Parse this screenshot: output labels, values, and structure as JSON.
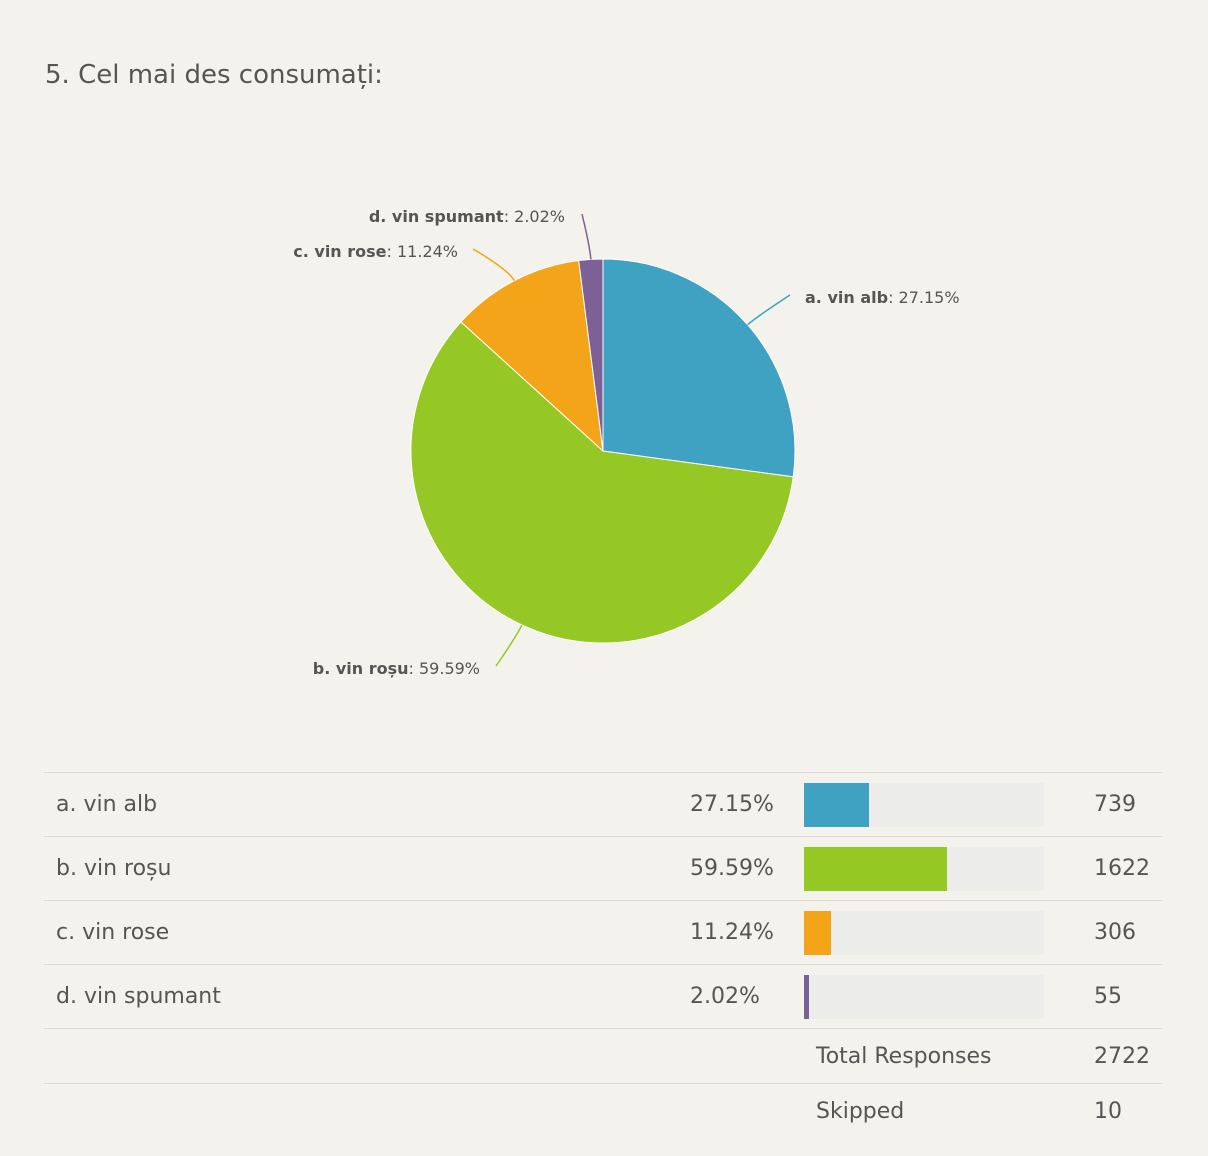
{
  "question": {
    "title": "5. Cel mai des consumați:"
  },
  "chart_data": {
    "type": "pie",
    "slices": [
      {
        "name": "a. vin alb",
        "label_name": "a. vin alb",
        "percent": 27.15,
        "percent_label": "27.15%",
        "count": 739,
        "color": "#3fa2c3"
      },
      {
        "name": "b. vin roșu",
        "label_name": "b. vin roșu",
        "percent": 59.59,
        "percent_label": "59.59%",
        "count": 1622,
        "color": "#95c824"
      },
      {
        "name": "c. vin rose",
        "label_name": "c. vin rose",
        "percent": 11.24,
        "percent_label": "11.24%",
        "count": 306,
        "color": "#f4a419"
      },
      {
        "name": "d. vin spumant",
        "label_name": "d. vin spumant",
        "percent": 2.02,
        "percent_label": "2.02%",
        "count": 55,
        "color": "#7d6096"
      }
    ]
  },
  "table": {
    "rows": [
      {
        "label": "a. vin alb",
        "percent": "27.15%",
        "count": "739",
        "color": "#3fa2c3"
      },
      {
        "label": "b. vin roșu",
        "percent": "59.59%",
        "count": "1622",
        "color": "#95c824"
      },
      {
        "label": "c. vin rose",
        "percent": "11.24%",
        "count": "306",
        "color": "#f4a419"
      },
      {
        "label": "d. vin spumant",
        "percent": "2.02%",
        "count": "55",
        "color": "#7d6096"
      }
    ],
    "total_label": "Total Responses",
    "total_value": "2722",
    "skipped_label": "Skipped",
    "skipped_value": "10"
  }
}
